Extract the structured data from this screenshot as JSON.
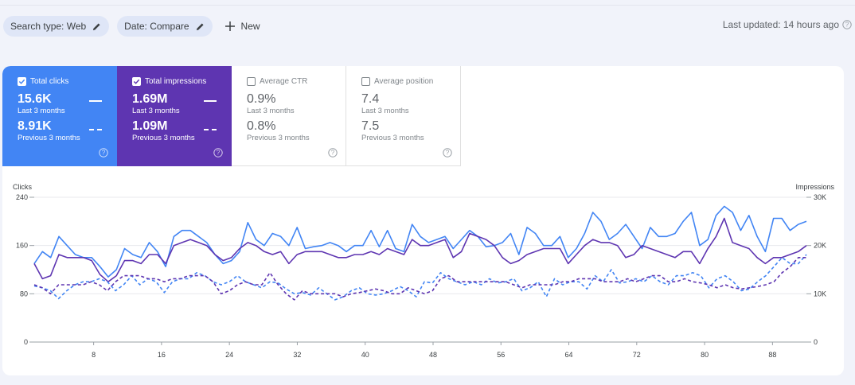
{
  "filters": {
    "search_type": "Search type: Web",
    "date": "Date: Compare",
    "new_label": "New"
  },
  "last_updated": "Last updated: 14 hours ago",
  "metrics": {
    "clicks": {
      "title": "Total clicks",
      "current": "15.6K",
      "current_label": "Last 3 months",
      "previous": "8.91K",
      "previous_label": "Previous 3 months",
      "checked": true,
      "color": "#4285f4"
    },
    "impressions": {
      "title": "Total impressions",
      "current": "1.69M",
      "current_label": "Last 3 months",
      "previous": "1.09M",
      "previous_label": "Previous 3 months",
      "checked": true,
      "color": "#5e35b1"
    },
    "ctr": {
      "title": "Average CTR",
      "current": "0.9%",
      "current_label": "Last 3 months",
      "previous": "0.8%",
      "previous_label": "Previous 3 months",
      "checked": false
    },
    "position": {
      "title": "Average position",
      "current": "7.4",
      "current_label": "Last 3 months",
      "previous": "7.5",
      "previous_label": "Previous 3 months",
      "checked": false
    }
  },
  "chart_data": {
    "type": "line",
    "y_left_label": "Clicks",
    "y_right_label": "Impressions",
    "y_left_ticks": [
      "0",
      "80",
      "160",
      "240"
    ],
    "y_right_ticks": [
      "0",
      "10K",
      "20K",
      "30K"
    ],
    "y_left_range": [
      0,
      240
    ],
    "y_right_range": [
      0,
      30000
    ],
    "x_range": [
      1,
      92
    ],
    "x_ticks": [
      8,
      16,
      24,
      32,
      40,
      48,
      56,
      64,
      72,
      80,
      88
    ],
    "grid": true,
    "series": [
      {
        "color": "#4285f4",
        "style": "solid",
        "axis": "left",
        "values": [
          130,
          150,
          140,
          175,
          160,
          145,
          140,
          140,
          125,
          108,
          120,
          155,
          145,
          140,
          165,
          150,
          125,
          175,
          185,
          185,
          175,
          165,
          145,
          130,
          135,
          150,
          198,
          170,
          160,
          180,
          175,
          160,
          190,
          155,
          158,
          160,
          165,
          160,
          150,
          160,
          160,
          185,
          158,
          185,
          155,
          150,
          195,
          175,
          165,
          170,
          175,
          155,
          170,
          185,
          175,
          158,
          160,
          165,
          180,
          145,
          190,
          180,
          160,
          160,
          175,
          140,
          155,
          180,
          215,
          200,
          170,
          180,
          195,
          175,
          155,
          190,
          175,
          175,
          180,
          200,
          215,
          160,
          170,
          210,
          225,
          215,
          185,
          210,
          175,
          150,
          205,
          205,
          185,
          195,
          200
        ]
      },
      {
        "color": "#5e35b1",
        "style": "solid",
        "axis": "left",
        "values": [
          130,
          105,
          110,
          145,
          140,
          140,
          140,
          135,
          112,
          100,
          110,
          135,
          135,
          130,
          145,
          145,
          130,
          160,
          165,
          170,
          165,
          160,
          145,
          135,
          140,
          155,
          165,
          160,
          150,
          145,
          150,
          130,
          145,
          150,
          150,
          150,
          145,
          140,
          140,
          145,
          145,
          150,
          145,
          155,
          150,
          145,
          170,
          160,
          160,
          165,
          170,
          140,
          150,
          180,
          175,
          170,
          160,
          140,
          130,
          135,
          145,
          150,
          155,
          155,
          155,
          130,
          145,
          160,
          170,
          165,
          165,
          160,
          140,
          145,
          160,
          155,
          150,
          145,
          140,
          150,
          150,
          130,
          155,
          175,
          205,
          165,
          160,
          155,
          140,
          130,
          140,
          140,
          145,
          150,
          160
        ]
      },
      {
        "color": "#4285f4",
        "style": "dashed",
        "axis": "left",
        "values": [
          93,
          90,
          85,
          72,
          85,
          95,
          100,
          100,
          105,
          100,
          85,
          95,
          110,
          95,
          105,
          100,
          82,
          100,
          105,
          105,
          115,
          110,
          100,
          95,
          100,
          110,
          100,
          95,
          90,
          100,
          98,
          88,
          80,
          82,
          78,
          90,
          80,
          70,
          75,
          85,
          90,
          80,
          78,
          80,
          85,
          92,
          85,
          75,
          100,
          98,
          115,
          105,
          100,
          95,
          100,
          95,
          105,
          98,
          100,
          105,
          85,
          90,
          100,
          75,
          105,
          95,
          100,
          100,
          88,
          110,
          100,
          120,
          98,
          100,
          105,
          100,
          110,
          100,
          95,
          110,
          110,
          115,
          110,
          90,
          105,
          110,
          100,
          85,
          88,
          100,
          110,
          125,
          140,
          130,
          130,
          145
        ]
      },
      {
        "color": "#5e35b1",
        "style": "dashed",
        "axis": "left",
        "values": [
          95,
          90,
          80,
          95,
          95,
          95,
          95,
          100,
          95,
          85,
          100,
          110,
          110,
          110,
          105,
          105,
          100,
          105,
          105,
          110,
          110,
          110,
          100,
          80,
          85,
          95,
          100,
          95,
          95,
          115,
          95,
          80,
          70,
          85,
          80,
          80,
          80,
          80,
          75,
          80,
          82,
          85,
          88,
          85,
          80,
          80,
          90,
          85,
          80,
          85,
          105,
          110,
          100,
          100,
          100,
          100,
          100,
          100,
          100,
          95,
          90,
          95,
          95,
          95,
          95,
          100,
          100,
          105,
          105,
          105,
          100,
          100,
          100,
          105,
          100,
          105,
          110,
          110,
          100,
          100,
          105,
          100,
          98,
          95,
          90,
          95,
          90,
          88,
          90,
          92,
          95,
          100,
          115,
          125,
          140,
          140
        ]
      }
    ]
  }
}
